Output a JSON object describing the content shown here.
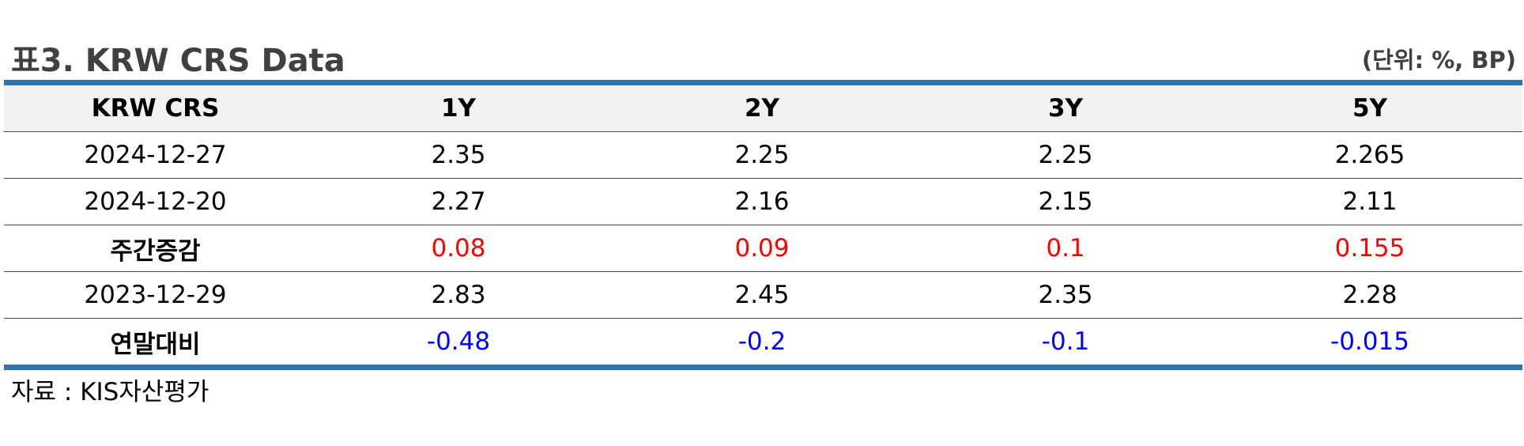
{
  "header": {
    "title": "표3. KRW CRS Data",
    "unit": "(단위: %, BP)"
  },
  "table": {
    "columns": [
      "KRW CRS",
      "1Y",
      "2Y",
      "3Y",
      "5Y"
    ],
    "rows": [
      {
        "label": "2024-12-27",
        "values": [
          "2.35",
          "2.25",
          "2.25",
          "2.265"
        ]
      },
      {
        "label": "2024-12-20",
        "values": [
          "2.27",
          "2.16",
          "2.15",
          "2.11"
        ]
      },
      {
        "label": "주간증감",
        "values": [
          "0.08",
          "0.09",
          "0.1",
          "0.155"
        ]
      },
      {
        "label": "2023-12-29",
        "values": [
          "2.83",
          "2.45",
          "2.35",
          "2.28"
        ]
      },
      {
        "label": "연말대비",
        "values": [
          "-0.48",
          "-0.2",
          "-0.1",
          "-0.015"
        ]
      }
    ]
  },
  "footer": {
    "source": "자료 : KIS자산평가"
  },
  "colors": {
    "accent_border": "#2e74b5",
    "increase": "#ff0000",
    "decrease": "#0000ff",
    "header_bg": "#f2f2f2",
    "title_text": "#404040"
  }
}
